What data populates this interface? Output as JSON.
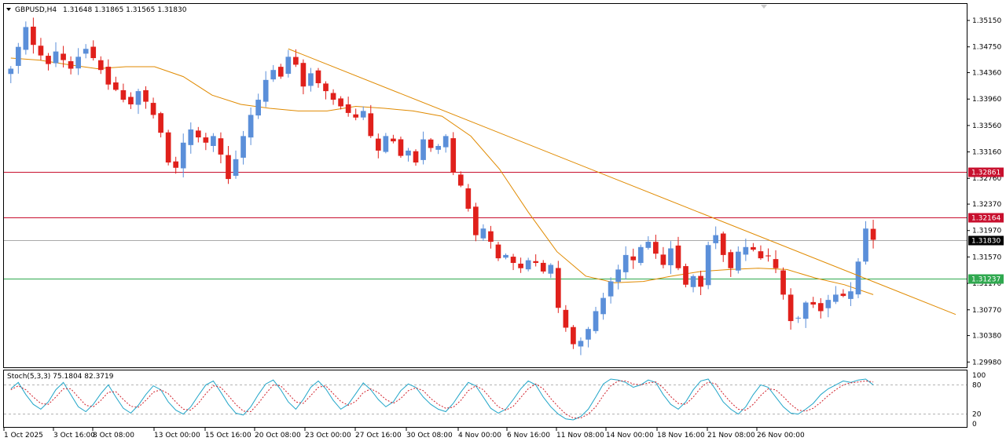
{
  "header": {
    "symbol": "GBPUSD,H4",
    "ohlc": "1.31648 1.31865 1.31565 1.31830"
  },
  "stoch": {
    "label": "Stoch(5,3,3) 75.1804 82.3719",
    "levels": [
      "100",
      "80",
      "20",
      "0"
    ]
  },
  "colors": {
    "up": "#5b8fd9",
    "down": "#e0201b",
    "ma": "#e08a00",
    "trendline": "#e08a00",
    "level_red": "#c8102e",
    "level_green": "#2fa84f",
    "bid": "#aaaaaa",
    "stoch_main": "#20a5c8",
    "stoch_signal": "#d0202a"
  },
  "price_axis": {
    "ticks": [
      "1.35150",
      "1.34750",
      "1.34360",
      "1.33960",
      "1.33560",
      "1.33160",
      "1.32760",
      "1.32370",
      "1.31970",
      "1.31570",
      "1.31170",
      "1.30770",
      "1.30380",
      "1.29980"
    ],
    "range": [
      1.299,
      1.354
    ]
  },
  "levels": {
    "resistance_1": "1.32861",
    "resistance_2": "1.32164",
    "current": "1.31830",
    "support": "1.31237"
  },
  "time_axis": [
    "1 Oct 2025",
    "3 Oct 16:00",
    "8 Oct 08:00",
    "13 Oct 00:00",
    "15 Oct 16:00",
    "20 Oct 08:00",
    "23 Oct 00:00",
    "27 Oct 16:00",
    "30 Oct 08:00",
    "4 Nov 00:00",
    "6 Nov 16:00",
    "11 Nov 08:00",
    "14 Nov 00:00",
    "18 Nov 16:00",
    "21 Nov 08:00",
    "26 Nov 00:00"
  ],
  "chart_data": {
    "type": "candlestick",
    "title": "GBPUSD,H4",
    "ylim": [
      1.299,
      1.354
    ],
    "anchors": [
      [
        0,
        1.3442
      ],
      [
        1,
        1.3475
      ],
      [
        2,
        1.3505
      ],
      [
        3,
        1.3478
      ],
      [
        4,
        1.3462
      ],
      [
        5,
        1.3449
      ],
      [
        6,
        1.3468
      ],
      [
        7,
        1.3455
      ],
      [
        8,
        1.3442
      ],
      [
        9,
        1.346
      ],
      [
        10,
        1.3472
      ],
      [
        11,
        1.3458
      ],
      [
        12,
        1.344
      ],
      [
        13,
        1.3418
      ],
      [
        14,
        1.341
      ],
      [
        15,
        1.3395
      ],
      [
        16,
        1.3388
      ],
      [
        17,
        1.3408
      ],
      [
        18,
        1.3392
      ],
      [
        19,
        1.3372
      ],
      [
        20,
        1.3345
      ],
      [
        21,
        1.33
      ],
      [
        22,
        1.3292
      ],
      [
        23,
        1.333
      ],
      [
        24,
        1.335
      ],
      [
        25,
        1.3338
      ],
      [
        26,
        1.333
      ],
      [
        27,
        1.334
      ],
      [
        28,
        1.3312
      ],
      [
        29,
        1.3275
      ],
      [
        30,
        1.3305
      ],
      [
        31,
        1.334
      ],
      [
        32,
        1.3372
      ],
      [
        33,
        1.3395
      ],
      [
        34,
        1.3425
      ],
      [
        35,
        1.344
      ],
      [
        36,
        1.343
      ],
      [
        37,
        1.346
      ],
      [
        38,
        1.3448
      ],
      [
        39,
        1.3415
      ],
      [
        40,
        1.3435
      ],
      [
        41,
        1.342
      ],
      [
        42,
        1.3408
      ],
      [
        43,
        1.3395
      ],
      [
        44,
        1.3385
      ],
      [
        45,
        1.3375
      ],
      [
        46,
        1.3368
      ],
      [
        47,
        1.3378
      ],
      [
        48,
        1.334
      ],
      [
        49,
        1.3318
      ],
      [
        50,
        1.334
      ],
      [
        51,
        1.3332
      ],
      [
        52,
        1.331
      ],
      [
        53,
        1.3318
      ],
      [
        54,
        1.33
      ],
      [
        55,
        1.3335
      ],
      [
        56,
        1.3322
      ],
      [
        57,
        1.3325
      ],
      [
        58,
        1.334
      ],
      [
        59,
        1.3285
      ],
      [
        60,
        1.3265
      ],
      [
        61,
        1.323
      ],
      [
        62,
        1.319
      ],
      [
        63,
        1.32
      ],
      [
        64,
        1.318
      ],
      [
        65,
        1.3155
      ],
      [
        66,
        1.316
      ],
      [
        67,
        1.3148
      ],
      [
        68,
        1.314
      ],
      [
        69,
        1.3152
      ],
      [
        70,
        1.3148
      ],
      [
        71,
        1.3135
      ],
      [
        72,
        1.3145
      ],
      [
        73,
        1.308
      ],
      [
        74,
        1.305
      ],
      [
        75,
        1.3025
      ],
      [
        76,
        1.303
      ],
      [
        77,
        1.3048
      ],
      [
        78,
        1.3075
      ],
      [
        79,
        1.3095
      ],
      [
        80,
        1.312
      ],
      [
        81,
        1.3138
      ],
      [
        82,
        1.316
      ],
      [
        83,
        1.3152
      ],
      [
        84,
        1.3172
      ],
      [
        85,
        1.318
      ],
      [
        86,
        1.3162
      ],
      [
        87,
        1.3145
      ],
      [
        88,
        1.317
      ],
      [
        89,
        1.314
      ],
      [
        90,
        1.3115
      ],
      [
        91,
        1.3128
      ],
      [
        92,
        1.3112
      ],
      [
        93,
        1.3175
      ],
      [
        94,
        1.319
      ],
      [
        95,
        1.316
      ],
      [
        96,
        1.314
      ],
      [
        97,
        1.3165
      ],
      [
        98,
        1.3172
      ],
      [
        99,
        1.3168
      ],
      [
        100,
        1.3155
      ],
      [
        101,
        1.3158
      ],
      [
        102,
        1.314
      ],
      [
        103,
        1.31
      ],
      [
        104,
        1.306
      ],
      [
        105,
        1.3065
      ],
      [
        106,
        1.3088
      ],
      [
        107,
        1.3085
      ],
      [
        108,
        1.3075
      ],
      [
        109,
        1.3092
      ],
      [
        110,
        1.31
      ],
      [
        111,
        1.3098
      ],
      [
        112,
        1.3105
      ],
      [
        113,
        1.315
      ],
      [
        114,
        1.32
      ],
      [
        115,
        1.3183
      ]
    ],
    "ma_period_note": "",
    "ma_values": [
      1.3458,
      1.3455,
      1.3448,
      1.3442,
      1.3445,
      1.3445,
      1.343,
      1.3402,
      1.3388,
      1.3382,
      1.3378,
      1.3378,
      1.3385,
      1.3382,
      1.3378,
      1.337,
      1.334,
      1.329,
      1.3225,
      1.3165,
      1.3128,
      1.3118,
      1.312,
      1.3128,
      1.3135,
      1.3138,
      1.314,
      1.3138,
      1.3125,
      1.3115,
      1.31
    ],
    "trendline": {
      "start": [
        37,
        1.3472
      ],
      "end": [
        126,
        1.307
      ]
    },
    "horizontal_levels": [
      1.32861,
      1.32164,
      1.3183,
      1.31237
    ],
    "stoch_main": [
      72,
      85,
      60,
      40,
      30,
      45,
      70,
      85,
      60,
      35,
      25,
      40,
      62,
      80,
      55,
      32,
      22,
      38,
      60,
      78,
      70,
      45,
      28,
      20,
      35,
      58,
      80,
      88,
      65,
      40,
      22,
      18,
      35,
      60,
      82,
      90,
      70,
      45,
      30,
      50,
      75,
      88,
      72,
      48,
      30,
      40,
      62,
      84,
      70,
      50,
      35,
      45,
      68,
      82,
      75,
      55,
      40,
      30,
      25,
      42,
      65,
      85,
      78,
      55,
      32,
      22,
      30,
      50,
      72,
      88,
      80,
      55,
      35,
      20,
      10,
      8,
      15,
      30,
      55,
      82,
      92,
      90,
      85,
      75,
      80,
      90,
      85,
      60,
      40,
      30,
      45,
      70,
      88,
      92,
      70,
      45,
      30,
      20,
      35,
      60,
      80,
      75,
      55,
      35,
      22,
      20,
      30,
      42,
      60,
      72,
      80,
      88,
      85,
      90,
      92,
      80
    ],
    "stoch_signal": [
      70,
      78,
      70,
      55,
      42,
      40,
      55,
      72,
      72,
      55,
      38,
      35,
      48,
      65,
      66,
      50,
      36,
      34,
      48,
      65,
      70,
      62,
      45,
      30,
      28,
      42,
      62,
      78,
      75,
      58,
      40,
      26,
      25,
      42,
      62,
      80,
      78,
      62,
      45,
      42,
      58,
      75,
      78,
      62,
      46,
      38,
      46,
      64,
      72,
      64,
      50,
      42,
      52,
      68,
      74,
      68,
      52,
      40,
      32,
      34,
      48,
      68,
      78,
      70,
      52,
      35,
      28,
      36,
      54,
      72,
      82,
      72,
      52,
      35,
      20,
      12,
      12,
      20,
      35,
      58,
      78,
      88,
      88,
      82,
      80,
      84,
      86,
      74,
      56,
      42,
      40,
      55,
      74,
      86,
      82,
      62,
      44,
      30,
      28,
      40,
      58,
      72,
      70,
      56,
      40,
      28,
      26,
      32,
      44,
      58,
      70,
      80,
      84,
      86,
      88,
      86
    ]
  }
}
